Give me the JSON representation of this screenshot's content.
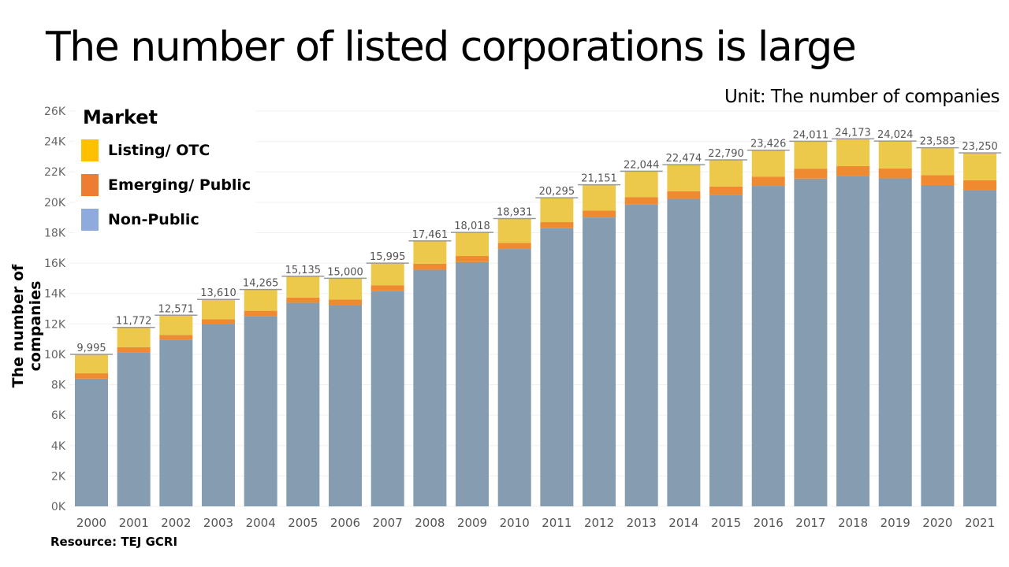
{
  "title": "The number of listed corporations is large",
  "unit": "Unit: The number of companies",
  "source": "Resource: TEJ GCRI",
  "chart_data": {
    "type": "bar",
    "stacked": true,
    "ylabel": "The number of companies",
    "xlabel": "",
    "ylim": [
      0,
      26000
    ],
    "yticks": [
      "0K",
      "2K",
      "4K",
      "6K",
      "8K",
      "10K",
      "12K",
      "14K",
      "16K",
      "18K",
      "20K",
      "22K",
      "24K",
      "26K"
    ],
    "grid": true,
    "legend": {
      "title": "Market",
      "placement": "top-left"
    },
    "categories": [
      "2000",
      "2001",
      "2002",
      "2003",
      "2004",
      "2005",
      "2006",
      "2007",
      "2008",
      "2009",
      "2010",
      "2011",
      "2012",
      "2013",
      "2014",
      "2015",
      "2016",
      "2017",
      "2018",
      "2019",
      "2020",
      "2021"
    ],
    "totals": [
      9995,
      11772,
      12571,
      13610,
      14265,
      15135,
      15000,
      15995,
      17461,
      18018,
      18931,
      20295,
      21151,
      22044,
      22474,
      22790,
      23426,
      24011,
      24173,
      24024,
      23583,
      23250
    ],
    "total_labels": [
      "9,995",
      "11,772",
      "12,571",
      "13,610",
      "14,265",
      "15,135",
      "15,000",
      "15,995",
      "17,461",
      "18,018",
      "18,931",
      "20,295",
      "21,151",
      "22,044",
      "22,474",
      "22,790",
      "23,426",
      "24,011",
      "24,173",
      "24,024",
      "23,583",
      "23,250"
    ],
    "series": [
      {
        "name": "Non-Public",
        "color": "#869cb0",
        "values": [
          8400,
          10120,
          10970,
          12010,
          12515,
          13385,
          13230,
          14145,
          15561,
          16068,
          16931,
          18295,
          19001,
          19844,
          20224,
          20490,
          21076,
          21561,
          21723,
          21574,
          21133,
          20800
        ]
      },
      {
        "name": "Emerging/ Public",
        "color": "#f08a30",
        "values": [
          350,
          350,
          300,
          300,
          350,
          350,
          370,
          400,
          400,
          400,
          400,
          400,
          450,
          500,
          500,
          550,
          600,
          650,
          650,
          650,
          650,
          650
        ]
      },
      {
        "name": "Listing/ OTC",
        "color": "#ecc94b",
        "values": [
          1245,
          1302,
          1301,
          1300,
          1400,
          1400,
          1400,
          1450,
          1500,
          1550,
          1600,
          1600,
          1700,
          1700,
          1750,
          1750,
          1750,
          1800,
          1800,
          1800,
          1800,
          1800
        ]
      }
    ],
    "legend_swatch_colors": [
      "#ffc000",
      "#ed7d31",
      "#8faadc"
    ]
  }
}
